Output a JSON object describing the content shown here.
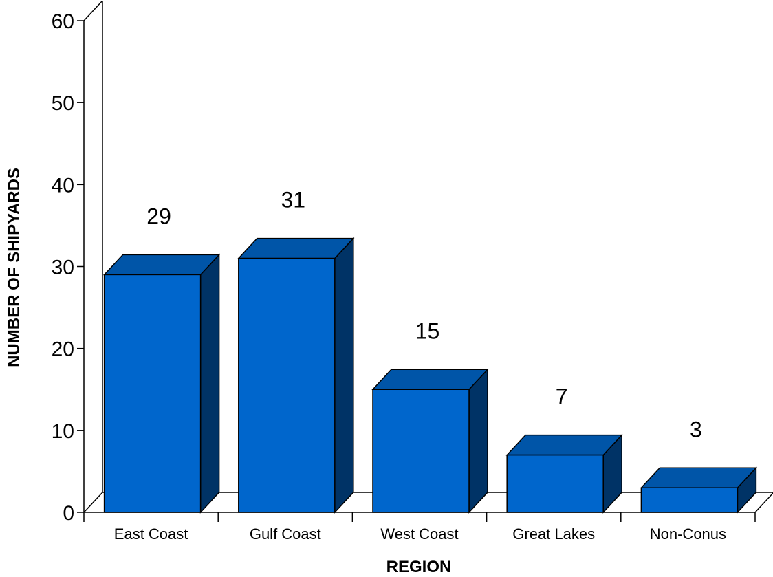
{
  "chart_data": {
    "type": "bar",
    "title": "",
    "xlabel": "REGION",
    "ylabel": "NUMBER OF SHIPYARDS",
    "categories": [
      "East Coast",
      "Gulf Coast",
      "West Coast",
      "Great Lakes",
      "Non-Conus"
    ],
    "values": [
      29,
      31,
      15,
      7,
      3
    ],
    "data_labels": [
      "29",
      "31",
      "15",
      "7",
      "3"
    ],
    "ylim": [
      0,
      60
    ],
    "yticks": [
      0,
      10,
      20,
      30,
      40,
      50,
      60
    ],
    "grid": false,
    "legend": "none",
    "style": "3d",
    "colors": {
      "front": "#0066CC",
      "top": "#0055A8",
      "side": "#003366",
      "outline": "#000000"
    }
  }
}
